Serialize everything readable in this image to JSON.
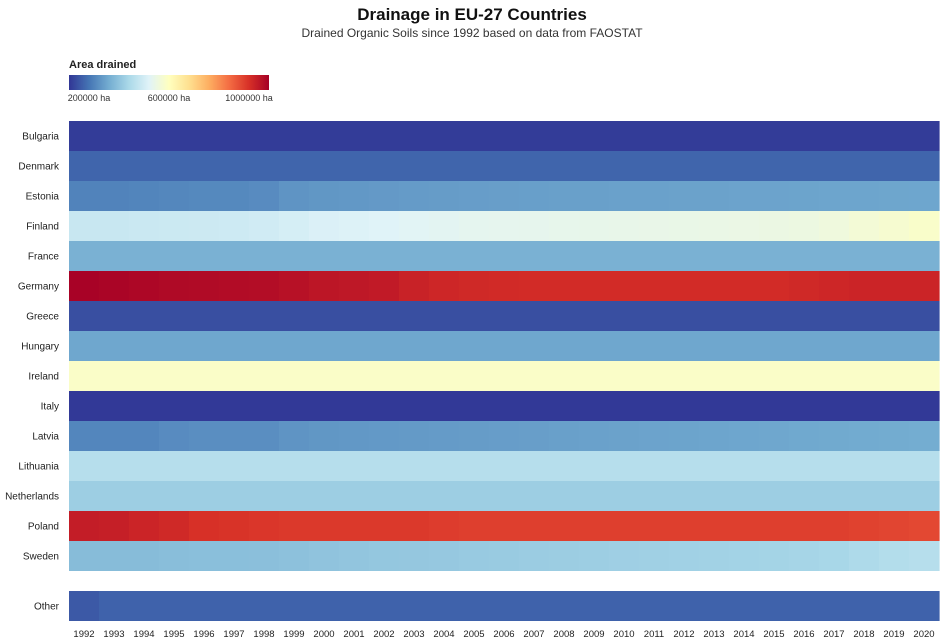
{
  "header": {
    "title": "Drainage in EU-27 Countries",
    "subtitle": "Drained Organic Soils since 1992 based on data from FAOSTAT"
  },
  "legend": {
    "title": "Area drained",
    "ticks": [
      "200000 ha",
      "600000 ha",
      "1000000 ha"
    ],
    "tick_values": [
      200000,
      600000,
      1000000
    ],
    "range": [
      100000,
      1100000
    ],
    "colors": [
      "#313695",
      "#4575b4",
      "#74add1",
      "#abd9e9",
      "#e0f3f8",
      "#ffffbf",
      "#fee090",
      "#fdae61",
      "#f46d43",
      "#d73027",
      "#a50026"
    ]
  },
  "chart_data": {
    "type": "heatmap",
    "title": "Drainage in EU-27 Countries",
    "subtitle": "Drained Organic Soils since 1992 based on data from FAOSTAT",
    "x": [
      "1992",
      "1993",
      "1994",
      "1995",
      "1996",
      "1997",
      "1998",
      "1999",
      "2000",
      "2001",
      "2002",
      "2003",
      "2004",
      "2005",
      "2006",
      "2007",
      "2008",
      "2009",
      "2010",
      "2011",
      "2012",
      "2013",
      "2014",
      "2015",
      "2016",
      "2017",
      "2018",
      "2019",
      "2020"
    ],
    "y": [
      "Bulgaria",
      "Denmark",
      "Estonia",
      "Finland",
      "France",
      "Germany",
      "Greece",
      "Hungary",
      "Ireland",
      "Italy",
      "Latvia",
      "Lithuania",
      "Netherlands",
      "Poland",
      "Sweden",
      "Other"
    ],
    "value_unit": "ha",
    "series": [
      {
        "name": "Bulgaria",
        "values": [
          110000,
          110000,
          110000,
          110000,
          110000,
          110000,
          110000,
          110000,
          110000,
          110000,
          110000,
          110000,
          110000,
          110000,
          110000,
          110000,
          110000,
          110000,
          110000,
          110000,
          110000,
          110000,
          110000,
          110000,
          110000,
          110000,
          110000,
          110000,
          110000
        ]
      },
      {
        "name": "Denmark",
        "values": [
          175000,
          175000,
          175000,
          175000,
          175000,
          175000,
          175000,
          175000,
          175000,
          175000,
          175000,
          175000,
          175000,
          175000,
          175000,
          175000,
          175000,
          175000,
          175000,
          175000,
          175000,
          175000,
          175000,
          175000,
          175000,
          175000,
          175000,
          175000,
          175000
        ]
      },
      {
        "name": "Estonia",
        "values": [
          225000,
          225000,
          228000,
          232000,
          235000,
          235000,
          240000,
          255000,
          260000,
          262000,
          265000,
          268000,
          270000,
          272000,
          274000,
          275000,
          276000,
          277000,
          278000,
          279000,
          280000,
          281000,
          282000,
          283000,
          284000,
          285000,
          286000,
          287000,
          288000
        ]
      },
      {
        "name": "Finland",
        "values": [
          455000,
          455000,
          458000,
          460000,
          462000,
          465000,
          470000,
          480000,
          490000,
          495000,
          500000,
          505000,
          510000,
          515000,
          518000,
          520000,
          522000,
          524000,
          526000,
          528000,
          530000,
          532000,
          534000,
          536000,
          540000,
          548000,
          560000,
          570000,
          580000
        ]
      },
      {
        "name": "France",
        "values": [
          310000,
          310000,
          310000,
          310000,
          310000,
          310000,
          310000,
          310000,
          310000,
          310000,
          310000,
          310000,
          310000,
          310000,
          310000,
          310000,
          310000,
          310000,
          310000,
          310000,
          310000,
          310000,
          310000,
          310000,
          310000,
          310000,
          310000,
          310000,
          310000
        ]
      },
      {
        "name": "Germany",
        "values": [
          1095000,
          1090000,
          1085000,
          1080000,
          1078000,
          1075000,
          1072000,
          1065000,
          1055000,
          1050000,
          1045000,
          1030000,
          1020000,
          1015000,
          1012000,
          1010000,
          1010000,
          1010000,
          1010000,
          1010000,
          1010000,
          1010000,
          1010000,
          1010000,
          1015000,
          1020000,
          1025000,
          1025000,
          1025000
        ]
      },
      {
        "name": "Greece",
        "values": [
          140000,
          140000,
          140000,
          140000,
          140000,
          140000,
          140000,
          140000,
          140000,
          140000,
          140000,
          140000,
          140000,
          140000,
          140000,
          140000,
          140000,
          140000,
          140000,
          140000,
          140000,
          140000,
          140000,
          140000,
          140000,
          140000,
          140000,
          140000,
          140000
        ]
      },
      {
        "name": "Hungary",
        "values": [
          290000,
          290000,
          290000,
          290000,
          290000,
          290000,
          290000,
          290000,
          290000,
          290000,
          290000,
          290000,
          290000,
          290000,
          290000,
          290000,
          290000,
          290000,
          290000,
          290000,
          290000,
          290000,
          290000,
          290000,
          290000,
          290000,
          290000,
          290000,
          290000
        ]
      },
      {
        "name": "Ireland",
        "values": [
          585000,
          585000,
          585000,
          585000,
          585000,
          585000,
          585000,
          585000,
          585000,
          585000,
          585000,
          585000,
          585000,
          585000,
          585000,
          585000,
          585000,
          585000,
          585000,
          585000,
          585000,
          585000,
          585000,
          585000,
          585000,
          585000,
          585000,
          585000,
          585000
        ]
      },
      {
        "name": "Italy",
        "values": [
          105000,
          105000,
          105000,
          105000,
          105000,
          105000,
          105000,
          105000,
          105000,
          105000,
          105000,
          105000,
          105000,
          105000,
          105000,
          105000,
          105000,
          105000,
          105000,
          105000,
          105000,
          105000,
          105000,
          105000,
          105000,
          105000,
          105000,
          105000,
          105000
        ]
      },
      {
        "name": "Latvia",
        "values": [
          230000,
          230000,
          230000,
          240000,
          245000,
          245000,
          245000,
          255000,
          260000,
          262000,
          264000,
          266000,
          268000,
          270000,
          272000,
          274000,
          276000,
          278000,
          280000,
          282000,
          284000,
          286000,
          288000,
          290000,
          292000,
          294000,
          296000,
          298000,
          300000
        ]
      },
      {
        "name": "Lithuania",
        "values": [
          420000,
          420000,
          420000,
          420000,
          420000,
          420000,
          420000,
          420000,
          420000,
          420000,
          420000,
          420000,
          420000,
          420000,
          420000,
          420000,
          420000,
          420000,
          420000,
          420000,
          420000,
          420000,
          420000,
          420000,
          420000,
          420000,
          420000,
          420000,
          420000
        ]
      },
      {
        "name": "Netherlands",
        "values": [
          375000,
          375000,
          375000,
          375000,
          375000,
          375000,
          375000,
          375000,
          375000,
          375000,
          375000,
          375000,
          375000,
          375000,
          375000,
          375000,
          375000,
          375000,
          375000,
          375000,
          375000,
          375000,
          375000,
          375000,
          375000,
          375000,
          375000,
          375000,
          375000
        ]
      },
      {
        "name": "Poland",
        "values": [
          1040000,
          1035000,
          1025000,
          1015000,
          1000000,
          995000,
          990000,
          985000,
          985000,
          985000,
          985000,
          985000,
          980000,
          975000,
          975000,
          975000,
          975000,
          975000,
          975000,
          975000,
          975000,
          975000,
          975000,
          975000,
          975000,
          975000,
          970000,
          965000,
          960000
        ]
      },
      {
        "name": "Sweden",
        "values": [
          335000,
          335000,
          335000,
          338000,
          340000,
          340000,
          342000,
          345000,
          350000,
          355000,
          358000,
          360000,
          362000,
          365000,
          368000,
          370000,
          372000,
          375000,
          378000,
          380000,
          382000,
          384000,
          386000,
          388000,
          390000,
          395000,
          405000,
          415000,
          420000
        ]
      },
      {
        "name": "Other",
        "values": [
          155000,
          170000,
          170000,
          170000,
          170000,
          170000,
          170000,
          170000,
          170000,
          170000,
          170000,
          170000,
          170000,
          170000,
          170000,
          170000,
          170000,
          170000,
          170000,
          170000,
          170000,
          170000,
          170000,
          170000,
          170000,
          170000,
          170000,
          170000,
          170000
        ]
      }
    ]
  }
}
